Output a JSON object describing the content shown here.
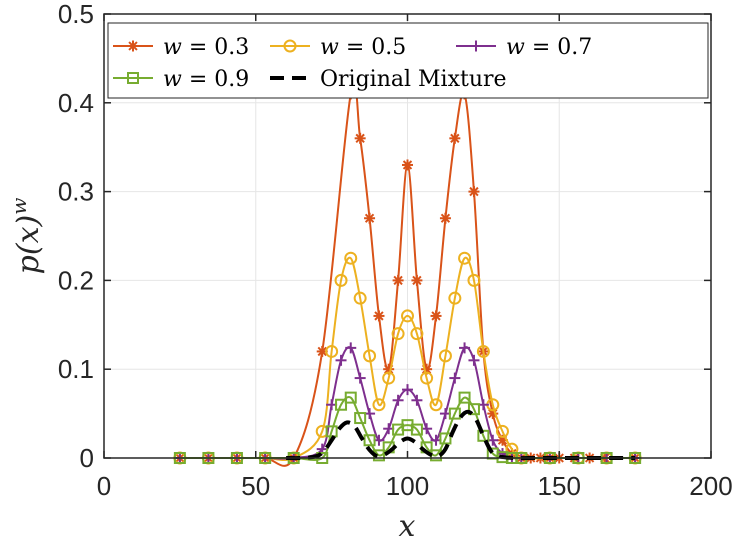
{
  "chart_data": {
    "type": "line",
    "title": "",
    "xlabel": "x",
    "ylabel": "p(x)^w",
    "xlim": [
      0,
      200
    ],
    "ylim": [
      0,
      0.5
    ],
    "xticks": [
      0,
      50,
      100,
      150,
      200
    ],
    "yticks": [
      0,
      0.1,
      0.2,
      0.3,
      0.4,
      0.5
    ],
    "xtick_labels": [
      "0",
      "50",
      "100",
      "150",
      "200"
    ],
    "ytick_labels": [
      "0",
      "0.1",
      "0.2",
      "0.3",
      "0.4",
      "0.5"
    ],
    "grid": true,
    "legend_position": "top",
    "series": [
      {
        "name": "w = 0.3",
        "color": "#D95319",
        "marker": "asterisk",
        "x": [
          25,
          34.4,
          43.8,
          53.1,
          62.5,
          71.9,
          81.3,
          84.4,
          87.5,
          90.6,
          93.8,
          96.9,
          100,
          103.1,
          106.3,
          109.4,
          112.5,
          115.6,
          118.8,
          121.9,
          125,
          128.1,
          131.3,
          134.4,
          137.5,
          140.6,
          143.8,
          146.9,
          150,
          155,
          160,
          165,
          175
        ],
        "y": [
          0,
          0,
          0,
          0,
          0,
          0.12,
          0.41,
          0.36,
          0.27,
          0.16,
          0.1,
          0.2,
          0.33,
          0.2,
          0.1,
          0.16,
          0.27,
          0.36,
          0.41,
          0.3,
          0.12,
          0.05,
          0.02,
          0.005,
          0,
          0,
          0,
          0,
          0,
          0,
          0,
          0,
          0
        ]
      },
      {
        "name": "w = 0.5",
        "color": "#EDB120",
        "marker": "circle",
        "x": [
          25,
          34.4,
          43.8,
          53.1,
          62.5,
          71.9,
          75,
          78.1,
          81.3,
          84.4,
          87.5,
          90.6,
          93.8,
          96.9,
          100,
          103.1,
          106.3,
          109.4,
          112.5,
          115.6,
          118.8,
          121.9,
          125,
          128.1,
          131.3,
          134.4,
          137.5,
          146.9,
          156.3,
          165.6,
          175
        ],
        "y": [
          0,
          0,
          0,
          0,
          0,
          0.03,
          0.12,
          0.2,
          0.225,
          0.18,
          0.115,
          0.06,
          0.09,
          0.14,
          0.16,
          0.14,
          0.09,
          0.06,
          0.115,
          0.18,
          0.225,
          0.2,
          0.12,
          0.06,
          0.03,
          0.01,
          0,
          0,
          0,
          0,
          0
        ]
      },
      {
        "name": "w = 0.7",
        "color": "#7E2F8E",
        "marker": "plus",
        "x": [
          25,
          34.4,
          43.8,
          53.1,
          62.5,
          71.9,
          75,
          78.1,
          81.3,
          84.4,
          87.5,
          90.6,
          93.8,
          96.9,
          100,
          103.1,
          106.3,
          109.4,
          112.5,
          115.6,
          118.8,
          121.9,
          125,
          128.1,
          131.3,
          134.4,
          137.5,
          146.9,
          156.3,
          165.6,
          175
        ],
        "y": [
          0,
          0,
          0,
          0,
          0,
          0.01,
          0.06,
          0.11,
          0.124,
          0.09,
          0.05,
          0.02,
          0.033,
          0.065,
          0.077,
          0.065,
          0.033,
          0.02,
          0.05,
          0.09,
          0.124,
          0.11,
          0.06,
          0.02,
          0.005,
          0,
          0,
          0,
          0,
          0,
          0
        ]
      },
      {
        "name": "w = 0.9",
        "color": "#77AC30",
        "marker": "square",
        "x": [
          25,
          34.4,
          43.8,
          53.1,
          62.5,
          71.9,
          75,
          78.1,
          81.3,
          84.4,
          87.5,
          90.6,
          93.8,
          96.9,
          100,
          103.1,
          106.3,
          109.4,
          112.5,
          115.6,
          118.8,
          121.9,
          125,
          128.1,
          131.3,
          134.4,
          137.5,
          146.9,
          156.3,
          165.6,
          175
        ],
        "y": [
          0,
          0,
          0,
          0,
          0,
          0,
          0.03,
          0.06,
          0.068,
          0.045,
          0.02,
          0.003,
          0.012,
          0.032,
          0.037,
          0.032,
          0.012,
          0.003,
          0.022,
          0.05,
          0.068,
          0.055,
          0.025,
          0.005,
          0.001,
          0,
          0,
          0,
          0,
          0,
          0
        ]
      },
      {
        "name": "Original Mixture",
        "color": "#000000",
        "marker": "none",
        "dashed": true,
        "x": [
          60,
          65,
          70,
          72.5,
          75,
          77.5,
          80,
          82.5,
          85,
          87.5,
          90,
          92.5,
          95,
          97.5,
          100,
          102.5,
          105,
          107.5,
          110,
          112.5,
          115,
          117.5,
          120,
          122.5,
          125,
          127.5,
          130,
          135,
          140,
          150,
          175
        ],
        "y": [
          0,
          0,
          0.002,
          0.008,
          0.02,
          0.033,
          0.04,
          0.036,
          0.022,
          0.009,
          0.002,
          0.004,
          0.01,
          0.018,
          0.022,
          0.018,
          0.01,
          0.004,
          0.002,
          0.01,
          0.03,
          0.046,
          0.052,
          0.044,
          0.025,
          0.008,
          0.002,
          0,
          0,
          0,
          0
        ]
      }
    ]
  }
}
